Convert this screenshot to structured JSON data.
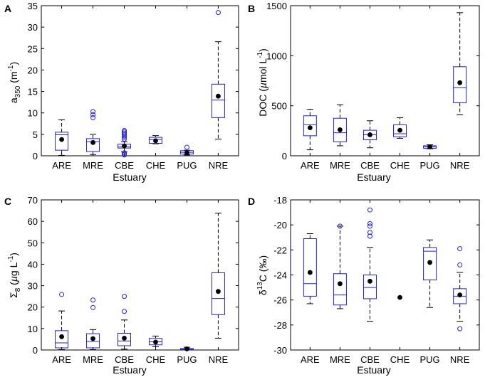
{
  "figure": {
    "box_color": "#2020e0",
    "mean_color": "#000000",
    "whisker_color": "#000000"
  },
  "chart_data": [
    {
      "panel": "A",
      "type": "box",
      "xlabel": "Estuary",
      "ylabel": "a350 (m-1)",
      "ylabel_parts": {
        "main": "a",
        "sub": "350",
        "unit_open": " (m",
        "sup": "-1",
        "unit_close": ")"
      },
      "ylim": [
        0,
        35
      ],
      "yticks": [
        0,
        5,
        10,
        15,
        20,
        25,
        30,
        35
      ],
      "categories": [
        "ARE",
        "MRE",
        "CBE",
        "CHE",
        "PUG",
        "NRE"
      ],
      "boxes": [
        {
          "name": "ARE",
          "whislo": 0.1,
          "q1": 1.3,
          "med": 4.9,
          "q3": 5.5,
          "whishi": 8.4,
          "mean": 3.8,
          "fliers": []
        },
        {
          "name": "MRE",
          "whislo": 0.3,
          "q1": 1.0,
          "med": 3.3,
          "q3": 4.0,
          "whishi": 5.0,
          "mean": 3.1,
          "fliers": [
            8.9,
            9.6,
            10.3
          ]
        },
        {
          "name": "CBE",
          "whislo": 0.9,
          "q1": 1.8,
          "med": 2.1,
          "q3": 2.7,
          "whishi": 3.3,
          "mean": 2.3,
          "fliers": [
            0.2,
            0.4,
            0.7,
            3.9,
            4.3,
            4.6,
            5.0,
            5.3,
            5.6,
            5.9
          ]
        },
        {
          "name": "CHE",
          "whislo": 2.8,
          "q1": 2.9,
          "med": 3.8,
          "q3": 4.3,
          "whishi": 4.7,
          "mean": 3.5,
          "fliers": []
        },
        {
          "name": "PUG",
          "whislo": 0.2,
          "q1": 0.4,
          "med": 0.8,
          "q3": 1.2,
          "whishi": 1.3,
          "mean": 0.7,
          "fliers": [
            2.0
          ]
        },
        {
          "name": "NRE",
          "whislo": 3.9,
          "q1": 8.9,
          "med": 13.0,
          "q3": 16.7,
          "whishi": 26.6,
          "mean": 13.9,
          "fliers": [
            33.4
          ]
        }
      ]
    },
    {
      "panel": "B",
      "type": "box",
      "xlabel": "Estuary",
      "ylabel": "DOC (µmol L-1)",
      "ylabel_parts": {
        "main": "DOC (",
        "mu": "µ",
        "rest": "mol L",
        "sup": "-1",
        "close": ")"
      },
      "ylim": [
        0,
        1500
      ],
      "yticks": [
        0,
        500,
        1000,
        1500
      ],
      "categories": [
        "ARE",
        "MRE",
        "CBE",
        "CHE",
        "PUG",
        "NRE"
      ],
      "boxes": [
        {
          "name": "ARE",
          "whislo": 60,
          "q1": 200,
          "med": 310,
          "q3": 400,
          "whishi": 465,
          "mean": 280,
          "fliers": []
        },
        {
          "name": "MRE",
          "whislo": 100,
          "q1": 140,
          "med": 230,
          "q3": 375,
          "whishi": 510,
          "mean": 260,
          "fliers": []
        },
        {
          "name": "CBE",
          "whislo": 80,
          "q1": 160,
          "med": 210,
          "q3": 255,
          "whishi": 350,
          "mean": 210,
          "fliers": []
        },
        {
          "name": "CHE",
          "whislo": 175,
          "q1": 190,
          "med": 220,
          "q3": 310,
          "whishi": 380,
          "mean": 255,
          "fliers": []
        },
        {
          "name": "PUG",
          "whislo": 70,
          "q1": 75,
          "med": 90,
          "q3": 100,
          "whishi": 110,
          "mean": 90,
          "fliers": []
        },
        {
          "name": "NRE",
          "whislo": 410,
          "q1": 530,
          "med": 680,
          "q3": 890,
          "whishi": 1430,
          "mean": 730,
          "fliers": []
        }
      ]
    },
    {
      "panel": "C",
      "type": "box",
      "xlabel": "Estuary",
      "ylabel": "Σ8 (µg L-1)",
      "ylabel_parts": {
        "main": "Σ",
        "sub": "8",
        "open": " (",
        "mu": "µ",
        "rest": "g L",
        "sup": "-1",
        "close": ")"
      },
      "ylim": [
        0,
        70
      ],
      "yticks": [
        0,
        10,
        20,
        30,
        40,
        50,
        60,
        70
      ],
      "categories": [
        "ARE",
        "MRE",
        "CBE",
        "CHE",
        "PUG",
        "NRE"
      ],
      "boxes": [
        {
          "name": "ARE",
          "whislo": 0.2,
          "q1": 1.0,
          "med": 3.3,
          "q3": 9.0,
          "whishi": 18.2,
          "mean": 6.2,
          "fliers": [
            25.9
          ]
        },
        {
          "name": "MRE",
          "whislo": 0.2,
          "q1": 1.0,
          "med": 4.0,
          "q3": 7.6,
          "whishi": 9.5,
          "mean": 5.3,
          "fliers": [
            19.8,
            23.3
          ]
        },
        {
          "name": "CBE",
          "whislo": 0.4,
          "q1": 2.0,
          "med": 4.2,
          "q3": 7.8,
          "whishi": 14.0,
          "mean": 5.5,
          "fliers": [
            18.0,
            25.0
          ]
        },
        {
          "name": "CHE",
          "whislo": 1.5,
          "q1": 2.4,
          "med": 3.8,
          "q3": 5.4,
          "whishi": 6.5,
          "mean": 3.7,
          "fliers": []
        },
        {
          "name": "PUG",
          "whislo": 0.1,
          "q1": 0.2,
          "med": 0.3,
          "q3": 0.7,
          "whishi": 1.3,
          "mean": 0.5,
          "fliers": []
        },
        {
          "name": "NRE",
          "whislo": 5.5,
          "q1": 16.5,
          "med": 24.0,
          "q3": 36.0,
          "whishi": 63.8,
          "mean": 27.3,
          "fliers": []
        }
      ]
    },
    {
      "panel": "D",
      "type": "box",
      "xlabel": "Estuary",
      "ylabel": "δ13C (‰)",
      "ylabel_parts": {
        "main": "δ",
        "sup": "13",
        "rest": "C (‰)"
      },
      "ylim": [
        -30,
        -18
      ],
      "yticks": [
        -30,
        -28,
        -26,
        -24,
        -22,
        -20,
        -18
      ],
      "categories": [
        "ARE",
        "MRE",
        "CBE",
        "CHE",
        "PUG",
        "NRE"
      ],
      "boxes": [
        {
          "name": "ARE",
          "whislo": -26.3,
          "q1": -25.7,
          "med": -24.7,
          "q3": -21.1,
          "whishi": -20.7,
          "mean": -23.8,
          "fliers": []
        },
        {
          "name": "MRE",
          "whislo": -26.7,
          "q1": -26.4,
          "med": -25.6,
          "q3": -23.9,
          "whishi": -20.1,
          "mean": -24.7,
          "fliers": [
            -20.1
          ]
        },
        {
          "name": "CBE",
          "whislo": -27.7,
          "q1": -25.9,
          "med": -25.0,
          "q3": -24.0,
          "whishi": -21.8,
          "mean": -24.5,
          "fliers": [
            -18.8,
            -19.9,
            -20.1,
            -20.6,
            -20.9
          ]
        },
        {
          "name": "CHE",
          "whislo": null,
          "q1": null,
          "med": null,
          "q3": null,
          "whishi": null,
          "mean": -25.8,
          "fliers": []
        },
        {
          "name": "PUG",
          "whislo": -26.6,
          "q1": -24.4,
          "med": -22.1,
          "q3": -21.8,
          "whishi": -21.2,
          "mean": -23.0,
          "fliers": []
        },
        {
          "name": "NRE",
          "whislo": -27.7,
          "q1": -26.3,
          "med": -25.7,
          "q3": -25.1,
          "whishi": -23.8,
          "mean": -25.6,
          "fliers": [
            -21.9,
            -23.2,
            -28.3
          ]
        }
      ]
    }
  ]
}
